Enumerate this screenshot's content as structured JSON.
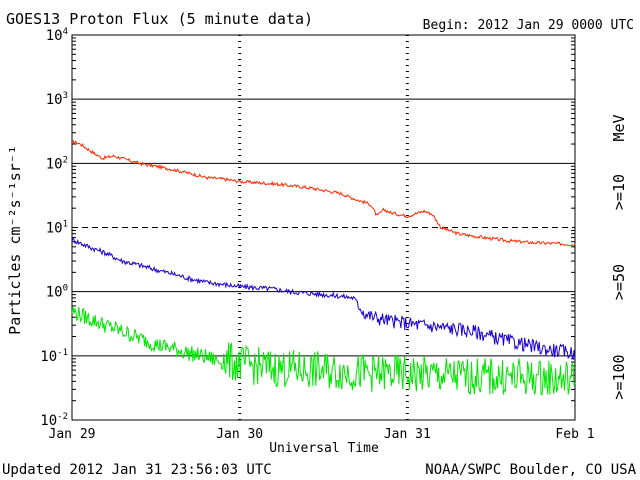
{
  "chart_data": {
    "type": "line",
    "title": "GOES13 Proton Flux (5 minute data)",
    "begin_label": "Begin: 2012 Jan 29 0000 UTC",
    "xlabel": "Universal Time",
    "ylabel": "Particles cm⁻²s⁻¹sr⁻¹",
    "x_unit": "days since 2012 Jan 29 0000 UTC",
    "xlim": [
      0,
      3
    ],
    "ylim": [
      0.01,
      10000
    ],
    "yscale": "log",
    "x_ticks": [
      {
        "x": 0,
        "label": "Jan 29"
      },
      {
        "x": 1,
        "label": "Jan 30"
      },
      {
        "x": 2,
        "label": "Jan 31"
      },
      {
        "x": 3,
        "label": "Feb 1"
      }
    ],
    "y_ticks": [
      {
        "value": 0.01,
        "base": "10",
        "exp": "-2"
      },
      {
        "value": 0.1,
        "base": "10",
        "exp": "-1"
      },
      {
        "value": 1,
        "base": "10",
        "exp": "0"
      },
      {
        "value": 10,
        "base": "10",
        "exp": "1"
      },
      {
        "value": 100,
        "base": "10",
        "exp": "2"
      },
      {
        "value": 1000,
        "base": "10",
        "exp": "3"
      },
      {
        "value": 10000,
        "base": "10",
        "exp": "4"
      }
    ],
    "solid_gridlines": [
      0.1,
      1,
      100,
      1000
    ],
    "dashed_gridlines": [
      10
    ],
    "series": [
      {
        "name": ">=10 MeV",
        "label": ">=10",
        "unit": "MeV",
        "color": "#ff2a00",
        "points": [
          [
            0,
            220
          ],
          [
            0.05,
            200
          ],
          [
            0.12,
            150
          ],
          [
            0.18,
            120
          ],
          [
            0.25,
            130
          ],
          [
            0.32,
            115
          ],
          [
            0.4,
            100
          ],
          [
            0.5,
            90
          ],
          [
            0.6,
            80
          ],
          [
            0.7,
            70
          ],
          [
            0.8,
            60
          ],
          [
            0.9,
            57
          ],
          [
            1.0,
            52
          ],
          [
            1.1,
            50
          ],
          [
            1.2,
            48
          ],
          [
            1.3,
            45
          ],
          [
            1.4,
            42
          ],
          [
            1.5,
            38
          ],
          [
            1.6,
            34
          ],
          [
            1.7,
            27
          ],
          [
            1.78,
            23
          ],
          [
            1.82,
            15
          ],
          [
            1.86,
            19
          ],
          [
            1.9,
            17
          ],
          [
            1.95,
            16
          ],
          [
            2.0,
            15
          ],
          [
            2.1,
            18
          ],
          [
            2.15,
            16
          ],
          [
            2.2,
            10
          ],
          [
            2.3,
            8
          ],
          [
            2.45,
            7
          ],
          [
            2.6,
            6.2
          ],
          [
            2.75,
            5.8
          ],
          [
            2.9,
            5.6
          ],
          [
            3.0,
            5.4
          ]
        ]
      },
      {
        "name": ">=50 MeV",
        "label": ">=50",
        "unit": "",
        "color": "#1a00d4",
        "points": [
          [
            0,
            6.5
          ],
          [
            0.1,
            5
          ],
          [
            0.2,
            4
          ],
          [
            0.3,
            3
          ],
          [
            0.4,
            2.6
          ],
          [
            0.5,
            2.2
          ],
          [
            0.6,
            1.9
          ],
          [
            0.7,
            1.6
          ],
          [
            0.8,
            1.4
          ],
          [
            0.9,
            1.3
          ],
          [
            1.0,
            1.2
          ],
          [
            1.1,
            1.15
          ],
          [
            1.2,
            1.1
          ],
          [
            1.3,
            1.0
          ],
          [
            1.4,
            0.95
          ],
          [
            1.5,
            0.9
          ],
          [
            1.6,
            0.85
          ],
          [
            1.68,
            0.8
          ],
          [
            1.75,
            0.45
          ],
          [
            1.8,
            0.4
          ],
          [
            1.9,
            0.35
          ],
          [
            2.0,
            0.32
          ],
          [
            2.1,
            0.3
          ],
          [
            2.2,
            0.28
          ],
          [
            2.3,
            0.26
          ],
          [
            2.4,
            0.24
          ],
          [
            2.5,
            0.2
          ],
          [
            2.6,
            0.17
          ],
          [
            2.7,
            0.15
          ],
          [
            2.8,
            0.13
          ],
          [
            2.9,
            0.12
          ],
          [
            3.0,
            0.11
          ]
        ]
      },
      {
        "name": ">=100 MeV",
        "label": ">=100",
        "unit": "",
        "color": "#00e600",
        "points": [
          [
            0,
            0.5
          ],
          [
            0.1,
            0.38
          ],
          [
            0.2,
            0.3
          ],
          [
            0.3,
            0.24
          ],
          [
            0.4,
            0.19
          ],
          [
            0.5,
            0.15
          ],
          [
            0.6,
            0.13
          ],
          [
            0.7,
            0.11
          ],
          [
            0.8,
            0.095
          ],
          [
            0.9,
            0.08
          ],
          [
            1.0,
            0.07
          ],
          [
            1.2,
            0.06
          ],
          [
            1.5,
            0.055
          ],
          [
            1.8,
            0.05
          ],
          [
            2.0,
            0.048
          ],
          [
            2.3,
            0.045
          ],
          [
            2.6,
            0.043
          ],
          [
            3.0,
            0.04
          ]
        ]
      }
    ]
  },
  "footer": {
    "updated": "Updated 2012 Jan 31 23:56:03 UTC",
    "source": "NOAA/SWPC Boulder, CO USA"
  }
}
